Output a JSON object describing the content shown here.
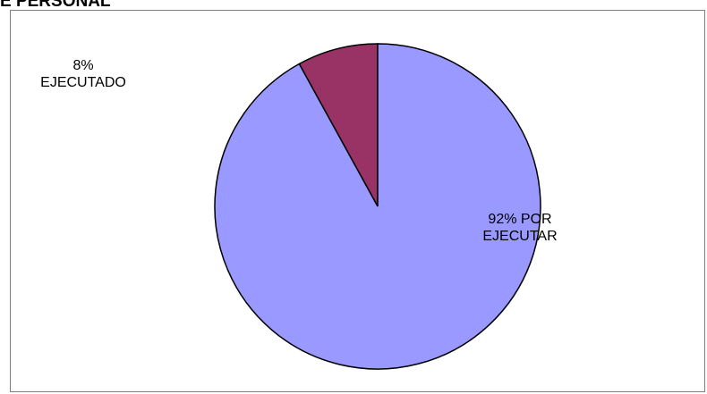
{
  "chart_data": {
    "type": "pie",
    "title": "E PERSONAL",
    "slices": [
      {
        "label": "EJECUTADO",
        "percent": 8,
        "percent_label": "8%",
        "color": "#993366"
      },
      {
        "label": "POR EJECUTAR",
        "percent": 92,
        "percent_label": "92%",
        "color": "#9999FF"
      }
    ],
    "slice_border_color": "#000000",
    "legend": "none"
  }
}
